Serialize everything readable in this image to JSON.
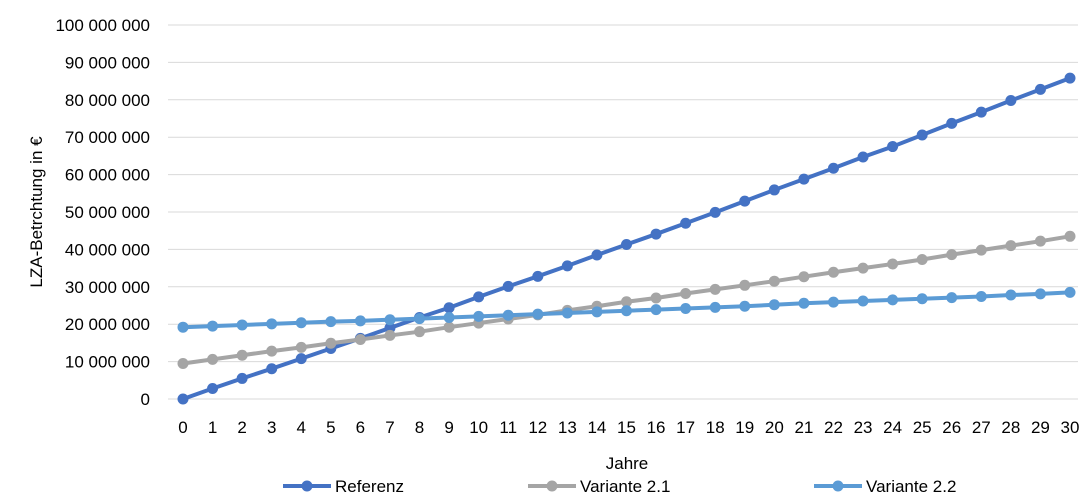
{
  "chart_data": {
    "type": "line",
    "title": "",
    "xlabel": "Jahre",
    "ylabel": "LZA-Betrchtung in €",
    "x": [
      0,
      1,
      2,
      3,
      4,
      5,
      6,
      7,
      8,
      9,
      10,
      11,
      12,
      13,
      14,
      15,
      16,
      17,
      18,
      19,
      20,
      21,
      22,
      23,
      24,
      25,
      26,
      27,
      28,
      29,
      30
    ],
    "xlim": [
      0,
      30
    ],
    "ylim": [
      0,
      100000000
    ],
    "yticks": [
      0,
      10000000,
      20000000,
      30000000,
      40000000,
      50000000,
      60000000,
      70000000,
      80000000,
      90000000,
      100000000
    ],
    "ytick_labels": [
      "0",
      "10 000 000",
      "20 000 000",
      "30 000 000",
      "40 000 000",
      "50 000 000",
      "60 000 000",
      "70 000 000",
      "80 000 000",
      "90 000 000",
      "100 000 000"
    ],
    "grid": "horizontal",
    "legend": "bottom",
    "series": [
      {
        "name": "Referenz",
        "color": "#4472c4",
        "values": [
          0,
          2800000,
          5500000,
          8100000,
          10800000,
          13500000,
          16200000,
          19000000,
          21800000,
          24400000,
          27300000,
          30100000,
          32800000,
          35600000,
          38500000,
          41300000,
          44100000,
          47000000,
          49900000,
          52900000,
          55900000,
          58800000,
          61700000,
          64700000,
          67500000,
          70600000,
          73700000,
          76700000,
          79800000,
          82800000,
          85800000
        ]
      },
      {
        "name": "Variante 2.1",
        "color": "#a5a5a5",
        "values": [
          9500000,
          10600000,
          11700000,
          12800000,
          13800000,
          14900000,
          15900000,
          17000000,
          18000000,
          19200000,
          20300000,
          21400000,
          22500000,
          23700000,
          24800000,
          26000000,
          27000000,
          28200000,
          29300000,
          30400000,
          31500000,
          32700000,
          33900000,
          35000000,
          36100000,
          37300000,
          38600000,
          39800000,
          41000000,
          42200000,
          43500000
        ]
      },
      {
        "name": "Variante 2.2",
        "color": "#5b9bd5",
        "values": [
          19200000,
          19500000,
          19800000,
          20100000,
          20400000,
          20700000,
          20900000,
          21200000,
          21500000,
          21800000,
          22100000,
          22400000,
          22700000,
          23000000,
          23300000,
          23600000,
          23900000,
          24200000,
          24500000,
          24800000,
          25200000,
          25600000,
          25900000,
          26200000,
          26500000,
          26800000,
          27100000,
          27400000,
          27800000,
          28100000,
          28500000
        ]
      }
    ]
  }
}
